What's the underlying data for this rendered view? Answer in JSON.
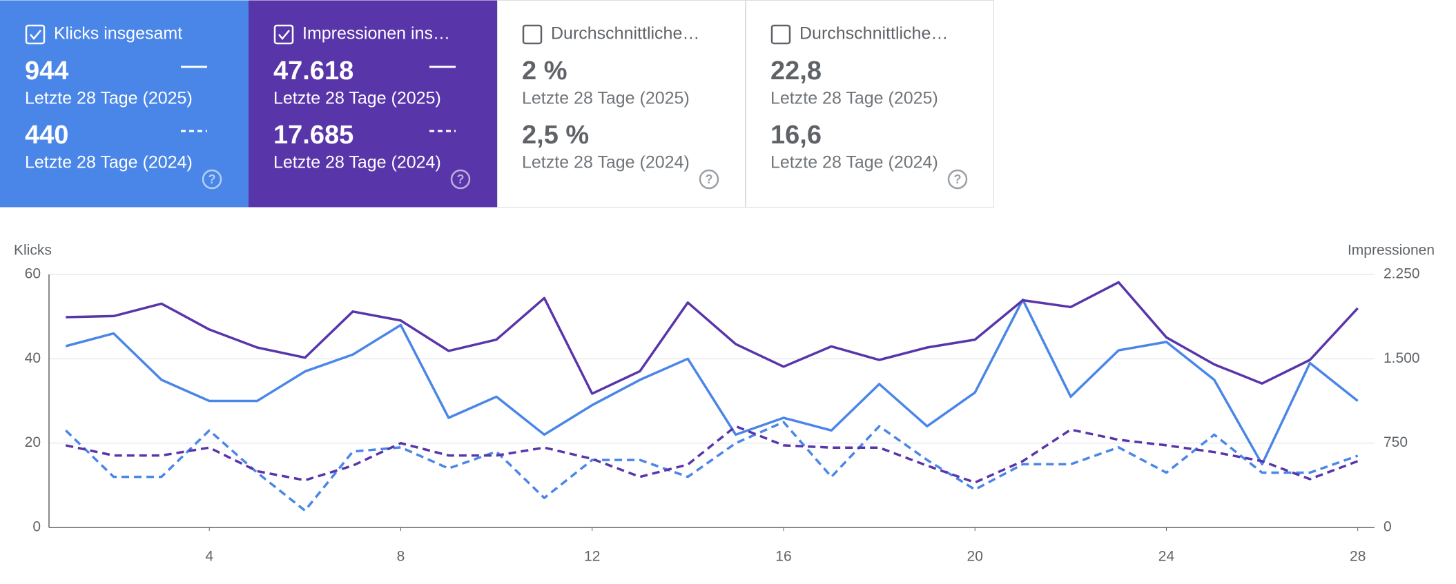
{
  "cards": [
    {
      "label": "Klicks insgesamt",
      "checked": true,
      "color": "#4a86e8",
      "rows": [
        {
          "value": "944",
          "period": "Letzte 28 Tage (2025)"
        },
        {
          "value": "440",
          "period": "Letzte 28 Tage (2024)"
        }
      ]
    },
    {
      "label": "Impressionen ins…",
      "checked": true,
      "color": "#5935aa",
      "rows": [
        {
          "value": "47.618",
          "period": "Letzte 28 Tage (2025)"
        },
        {
          "value": "17.685",
          "period": "Letzte 28 Tage (2024)"
        }
      ]
    },
    {
      "label": "Durchschnittliche…",
      "checked": false,
      "color": "#ffffff",
      "rows": [
        {
          "value": "2 %",
          "period": "Letzte 28 Tage (2025)"
        },
        {
          "value": "2,5 %",
          "period": "Letzte 28 Tage (2024)"
        }
      ]
    },
    {
      "label": "Durchschnittliche…",
      "checked": false,
      "color": "#ffffff",
      "rows": [
        {
          "value": "22,8",
          "period": "Letzte 28 Tage (2025)"
        },
        {
          "value": "16,6",
          "period": "Letzte 28 Tage (2024)"
        }
      ]
    }
  ],
  "chart_data": {
    "type": "line",
    "y_label": "Klicks",
    "y2_label": "Impressionen",
    "x": [
      1,
      2,
      3,
      4,
      5,
      6,
      7,
      8,
      9,
      10,
      11,
      12,
      13,
      14,
      15,
      16,
      17,
      18,
      19,
      20,
      21,
      22,
      23,
      24,
      25,
      26,
      27,
      28
    ],
    "xlim": [
      0.65,
      28.35
    ],
    "xticks": [
      4,
      8,
      12,
      16,
      20,
      24,
      28
    ],
    "ylim": [
      0,
      60
    ],
    "yticks": [
      0,
      20,
      40,
      60
    ],
    "y2lim": [
      0,
      2250
    ],
    "y2ticks": [
      0,
      750,
      {
        "value": 1500,
        "label": "1.500"
      },
      {
        "value": 2250,
        "label": "2.250"
      }
    ],
    "grid": true,
    "series": [
      {
        "color": "#4a86e8",
        "dash": false,
        "axis": "y",
        "values": [
          43,
          46,
          35,
          30,
          30,
          37,
          41,
          48,
          26,
          31,
          22,
          29,
          35,
          40,
          22,
          26,
          23,
          34,
          24,
          32,
          54,
          31,
          42,
          44,
          35,
          15,
          39,
          30
        ]
      },
      {
        "color": "#4a86e8",
        "dash": true,
        "axis": "y",
        "values": [
          23,
          12,
          12,
          23,
          13,
          4,
          18,
          19,
          14,
          18,
          7,
          16,
          16,
          12,
          20,
          25,
          12,
          24,
          16,
          9,
          15,
          15,
          19,
          13,
          22,
          13,
          13,
          17
        ]
      },
      {
        "color": "#5935aa",
        "dash": false,
        "axis": "y2",
        "values": [
          1870,
          1880,
          1990,
          1760,
          1600,
          1510,
          1920,
          1840,
          1570,
          1670,
          2040,
          1190,
          1390,
          2000,
          1630,
          1430,
          1610,
          1490,
          1600,
          1670,
          2020,
          1960,
          2180,
          1690,
          1450,
          1280,
          1490,
          1950
        ]
      },
      {
        "color": "#5935aa",
        "dash": true,
        "axis": "y2",
        "values": [
          730,
          640,
          640,
          710,
          500,
          420,
          550,
          750,
          640,
          640,
          710,
          610,
          450,
          560,
          900,
          730,
          710,
          710,
          550,
          400,
          590,
          870,
          780,
          730,
          670,
          590,
          430,
          590
        ]
      }
    ]
  }
}
